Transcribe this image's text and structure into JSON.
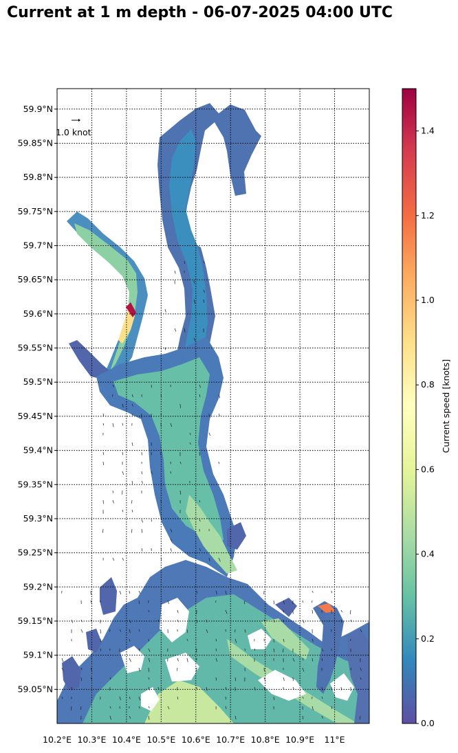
{
  "title": "Current at 1 m depth - 06-07-2025 04:00 UTC",
  "map": {
    "lon_range": [
      10.2,
      11.1
    ],
    "lat_range": [
      59.0,
      59.93
    ],
    "lon_ticks": [
      {
        "value": 10.2,
        "label": "10.2°E"
      },
      {
        "value": 10.3,
        "label": "10.3°E"
      },
      {
        "value": 10.4,
        "label": "10.4°E"
      },
      {
        "value": 10.5,
        "label": "10.5°E"
      },
      {
        "value": 10.6,
        "label": "10.6°E"
      },
      {
        "value": 10.7,
        "label": "10.7°E"
      },
      {
        "value": 10.8,
        "label": "10.8°E"
      },
      {
        "value": 10.9,
        "label": "10.9°E"
      },
      {
        "value": 11.0,
        "label": "11°E"
      }
    ],
    "lat_ticks": [
      {
        "value": 59.9,
        "label": "59.9°N"
      },
      {
        "value": 59.85,
        "label": "59.85°N"
      },
      {
        "value": 59.8,
        "label": "59.8°N"
      },
      {
        "value": 59.75,
        "label": "59.75°N"
      },
      {
        "value": 59.7,
        "label": "59.7°N"
      },
      {
        "value": 59.65,
        "label": "59.65°N"
      },
      {
        "value": 59.6,
        "label": "59.6°N"
      },
      {
        "value": 59.55,
        "label": "59.55°N"
      },
      {
        "value": 59.5,
        "label": "59.5°N"
      },
      {
        "value": 59.45,
        "label": "59.45°N"
      },
      {
        "value": 59.4,
        "label": "59.4°N"
      },
      {
        "value": 59.35,
        "label": "59.35°N"
      },
      {
        "value": 59.3,
        "label": "59.3°N"
      },
      {
        "value": 59.25,
        "label": "59.25°N"
      },
      {
        "value": 59.2,
        "label": "59.2°N"
      },
      {
        "value": 59.15,
        "label": "59.15°N"
      },
      {
        "value": 59.1,
        "label": "59.1°N"
      },
      {
        "value": 59.05,
        "label": "59.05°N"
      }
    ],
    "grid": "dotted",
    "reference_arrow_label": "1.0 knot"
  },
  "colorbar": {
    "label": "Current speed [knots]",
    "min": 0.0,
    "max": 1.5,
    "ticks": [
      {
        "value": 0.0,
        "label": "0.0"
      },
      {
        "value": 0.2,
        "label": "0.2"
      },
      {
        "value": 0.4,
        "label": "0.4"
      },
      {
        "value": 0.6,
        "label": "0.6"
      },
      {
        "value": 0.8,
        "label": "0.8"
      },
      {
        "value": 1.0,
        "label": "1.0"
      },
      {
        "value": 1.2,
        "label": "1.2"
      },
      {
        "value": 1.4,
        "label": "1.4"
      }
    ],
    "colormap": [
      "#5e4fa2",
      "#3288bd",
      "#66c2a5",
      "#abdda4",
      "#e6f598",
      "#ffffbf",
      "#fee08b",
      "#fdae61",
      "#f46d43",
      "#d53e4f",
      "#9e0142"
    ]
  }
}
